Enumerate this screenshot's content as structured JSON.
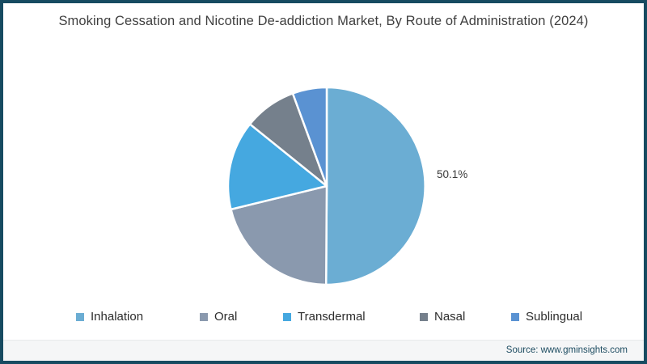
{
  "header": {
    "title": "Smoking Cessation and Nicotine De-addiction Market, By Route of Administration (2024)"
  },
  "chart_data": {
    "type": "pie",
    "title": "Smoking Cessation and Nicotine De-addiction Market, By Route of Administration (2024)",
    "unit": "percent",
    "start_angle_deg": 0,
    "direction": "clockwise",
    "legend_position": "bottom",
    "slices": [
      {
        "label": "Inhalation",
        "value": 50.1,
        "color": "#6badd3",
        "data_label": "50.1%"
      },
      {
        "label": "Oral",
        "value": 21.1,
        "color": "#8a99ae",
        "data_label": ""
      },
      {
        "label": "Transdermal",
        "value": 14.6,
        "color": "#45a8e0",
        "data_label": ""
      },
      {
        "label": "Nasal",
        "value": 8.6,
        "color": "#75808c",
        "data_label": ""
      },
      {
        "label": "Sublingual",
        "value": 5.6,
        "color": "#5a92d2",
        "data_label": ""
      }
    ]
  },
  "footer": {
    "source_label": "Source: www.gminsights.com"
  },
  "colors": {
    "border": "#174b61",
    "title_text": "#3f3f3f",
    "separator": "#ffffff",
    "footer_bg": "#f5f6f7",
    "footer_text": "#1d4c61"
  }
}
